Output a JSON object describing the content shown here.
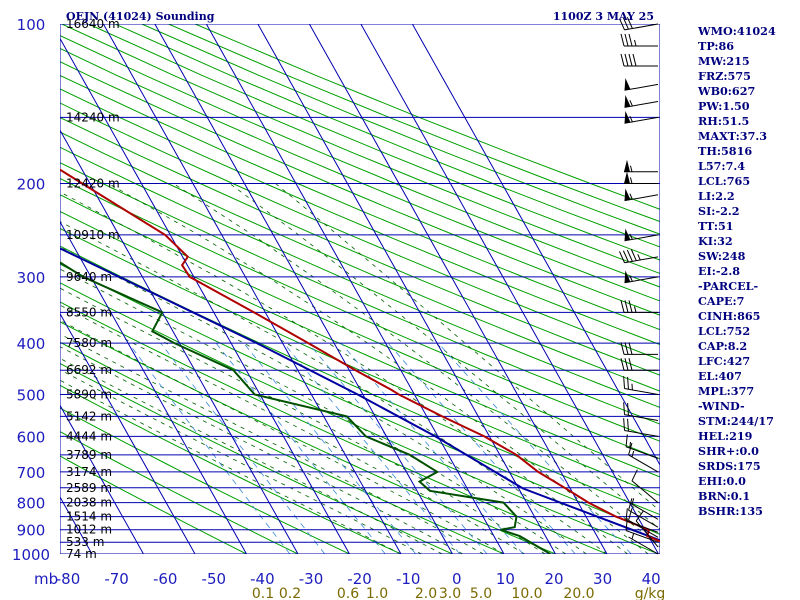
{
  "header": {
    "station": "OEJN (41024) Sounding",
    "time": "1100Z  3 MAY 25"
  },
  "colors": {
    "isobar": "#0000b0",
    "isotherm": "#0000b0",
    "dry_adiabat": "#00a000",
    "moist_adiabat": "#006000",
    "mixing_ratio": "#3a8ad8",
    "temperature": "#b00000",
    "dewpoint": "#005000",
    "parcel": "#0000a0",
    "wind_barb": "#000000",
    "index_text": "#00007f"
  },
  "chart_data": {
    "type": "skew-t",
    "x_unit_label": "mb",
    "y_scale": "log-pressure",
    "pressure_levels": [
      {
        "p": 100,
        "label": "100",
        "height": "16640 m"
      },
      {
        "p": 150,
        "label": "",
        "height": "14240 m"
      },
      {
        "p": 200,
        "label": "200",
        "height": "12420 m"
      },
      {
        "p": 250,
        "label": "",
        "height": "10910 m"
      },
      {
        "p": 300,
        "label": "300",
        "height": "9640 m"
      },
      {
        "p": 350,
        "label": "",
        "height": "8550 m"
      },
      {
        "p": 400,
        "label": "400",
        "height": "7580 m"
      },
      {
        "p": 450,
        "label": "",
        "height": "6692 m"
      },
      {
        "p": 500,
        "label": "500",
        "height": "5890 m"
      },
      {
        "p": 550,
        "label": "",
        "height": "5142 m"
      },
      {
        "p": 600,
        "label": "600",
        "height": "4444 m"
      },
      {
        "p": 650,
        "label": "",
        "height": "3789 m"
      },
      {
        "p": 700,
        "label": "700",
        "height": "3174 m"
      },
      {
        "p": 750,
        "label": "",
        "height": "2589 m"
      },
      {
        "p": 800,
        "label": "800",
        "height": "2038 m"
      },
      {
        "p": 850,
        "label": "",
        "height": "1514 m"
      },
      {
        "p": 900,
        "label": "900",
        "height": "1012 m"
      },
      {
        "p": 950,
        "label": "",
        "height": "533 m"
      },
      {
        "p": 1000,
        "label": "1000",
        "height": "74 m"
      }
    ],
    "temperature_ticks": [
      -80,
      -70,
      -60,
      -50,
      -40,
      -30,
      -20,
      -10,
      0,
      10,
      20,
      30,
      40
    ],
    "temperature_tick_labels": [
      "-80",
      "-70",
      "-60",
      "-50",
      "-40",
      "-30",
      "-20",
      "-10",
      "0",
      "10",
      "20",
      "30",
      "40"
    ],
    "mixing_ratio_labels": [
      "0.1",
      "0.2",
      "0.6",
      "1.0",
      "2.0",
      "3.0",
      "5.0",
      "10.0",
      "20.0",
      "g/kg"
    ],
    "mixing_ratio_values": [
      0.1,
      0.2,
      0.6,
      1.0,
      2.0,
      3.0,
      5.0,
      10.0,
      20.0
    ],
    "temperature_profile": [
      {
        "p": 1000,
        "t": 37.3
      },
      {
        "p": 950,
        "t": 32.0
      },
      {
        "p": 925,
        "t": 29.8
      },
      {
        "p": 900,
        "t": 30.8
      },
      {
        "p": 850,
        "t": 25.8
      },
      {
        "p": 800,
        "t": 22.0
      },
      {
        "p": 750,
        "t": 19.0
      },
      {
        "p": 700,
        "t": 15.6
      },
      {
        "p": 650,
        "t": 13.2
      },
      {
        "p": 600,
        "t": 9.0
      },
      {
        "p": 550,
        "t": 3.0
      },
      {
        "p": 500,
        "t": -3.0
      },
      {
        "p": 490,
        "t": -4.0
      },
      {
        "p": 450,
        "t": -8.8
      },
      {
        "p": 400,
        "t": -15.0
      },
      {
        "p": 350,
        "t": -22.2
      },
      {
        "p": 300,
        "t": -30.8
      },
      {
        "p": 285,
        "t": -31.0
      },
      {
        "p": 275,
        "t": -29.0
      },
      {
        "p": 250,
        "t": -31.0
      },
      {
        "p": 200,
        "t": -41.5
      },
      {
        "p": 150,
        "t": -55.0
      },
      {
        "p": 100,
        "t": -70.2
      }
    ],
    "dewpoint_profile": [
      {
        "p": 1000,
        "t": 9.0
      },
      {
        "p": 925,
        "t": 5.0
      },
      {
        "p": 900,
        "t": 2.0
      },
      {
        "p": 890,
        "t": 5.0
      },
      {
        "p": 850,
        "t": 6.5
      },
      {
        "p": 800,
        "t": 5.5
      },
      {
        "p": 760,
        "t": -7.5
      },
      {
        "p": 730,
        "t": -8.5
      },
      {
        "p": 700,
        "t": -4.0
      },
      {
        "p": 650,
        "t": -7.5
      },
      {
        "p": 600,
        "t": -14.0
      },
      {
        "p": 550,
        "t": -15.5
      },
      {
        "p": 500,
        "t": -31.0
      },
      {
        "p": 450,
        "t": -32.5
      },
      {
        "p": 400,
        "t": -41.0
      },
      {
        "p": 380,
        "t": -44.0
      },
      {
        "p": 350,
        "t": -40.0
      },
      {
        "p": 300,
        "t": -51.5
      },
      {
        "p": 250,
        "t": -60.0
      },
      {
        "p": 200,
        "t": -64.0
      },
      {
        "p": 150,
        "t": -74.0
      },
      {
        "p": 100,
        "t": -92.5
      }
    ],
    "parcel_profile": [
      {
        "p": 1000,
        "t": 37.3
      },
      {
        "p": 752,
        "t": 10.8
      },
      {
        "p": 600,
        "t": -0.5
      },
      {
        "p": 500,
        "t": -11.0
      },
      {
        "p": 400,
        "t": -25.0
      },
      {
        "p": 300,
        "t": -44.5
      },
      {
        "p": 200,
        "t": -72.0
      },
      {
        "p": 150,
        "t": -91.0
      }
    ],
    "wind_levels": [
      {
        "p": 1000,
        "dir": 300,
        "spd": 5
      },
      {
        "p": 970,
        "dir": 320,
        "spd": 10
      },
      {
        "p": 950,
        "dir": 290,
        "spd": 10
      },
      {
        "p": 930,
        "dir": 300,
        "spd": 10
      },
      {
        "p": 910,
        "dir": 290,
        "spd": 10
      },
      {
        "p": 890,
        "dir": 300,
        "spd": 10
      },
      {
        "p": 860,
        "dir": 300,
        "spd": 5
      },
      {
        "p": 800,
        "dir": 310,
        "spd": 10
      },
      {
        "p": 700,
        "dir": 300,
        "spd": 15
      },
      {
        "p": 660,
        "dir": 290,
        "spd": 15
      },
      {
        "p": 600,
        "dir": 280,
        "spd": 20
      },
      {
        "p": 560,
        "dir": 280,
        "spd": 20
      },
      {
        "p": 500,
        "dir": 280,
        "spd": 25
      },
      {
        "p": 450,
        "dir": 270,
        "spd": 30
      },
      {
        "p": 420,
        "dir": 270,
        "spd": 30
      },
      {
        "p": 350,
        "dir": 270,
        "spd": 35
      },
      {
        "p": 300,
        "dir": 260,
        "spd": 55
      },
      {
        "p": 275,
        "dir": 260,
        "spd": 45
      },
      {
        "p": 250,
        "dir": 260,
        "spd": 55
      },
      {
        "p": 210,
        "dir": 260,
        "spd": 55
      },
      {
        "p": 200,
        "dir": 270,
        "spd": 55
      },
      {
        "p": 190,
        "dir": 270,
        "spd": 55
      },
      {
        "p": 150,
        "dir": 260,
        "spd": 55
      },
      {
        "p": 140,
        "dir": 260,
        "spd": 55
      },
      {
        "p": 130,
        "dir": 260,
        "spd": 50
      },
      {
        "p": 120,
        "dir": 270,
        "spd": 40
      },
      {
        "p": 110,
        "dir": 270,
        "spd": 35
      },
      {
        "p": 100,
        "dir": 260,
        "spd": 30
      }
    ]
  },
  "indices": [
    "WMO:41024",
    "TP:86",
    "MW:215",
    "FRZ:575",
    "WB0:627",
    "PW:1.50",
    "RH:51.5",
    "MAXT:37.3",
    "TH:5816",
    "L57:7.4",
    "LCL:765",
    "LI:2.2",
    "SI:-2.2",
    "TT:51",
    "KI:32",
    "SW:248",
    "EI:-2.8",
    "-PARCEL-",
    "CAPE:7",
    "CINH:865",
    "LCL:752",
    "CAP:8.2",
    "LFC:427",
    "EL:407",
    "MPL:377",
    "-WIND-",
    "STM:244/17",
    "HEL:219",
    "SHR+:0.0",
    "SRDS:175",
    "EHI:0.0",
    "BRN:0.1",
    "BSHR:135"
  ]
}
